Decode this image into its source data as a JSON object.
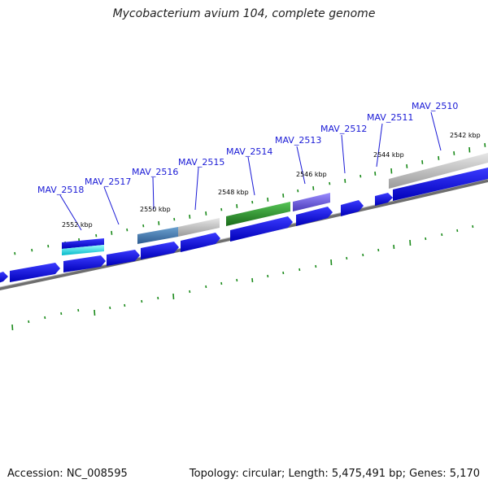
{
  "header": {
    "title": "Mycobacterium avium 104, complete genome"
  },
  "footer": {
    "accession": "Accession: NC_008595",
    "summary": "Topology: circular; Length: 5,475,491 bp; Genes: 5,170"
  },
  "colors": {
    "gene_blue": "#1010e0",
    "gene_cyan": "#00e8f0",
    "gene_steelblue": "#4a80b8",
    "gene_gray": "#bdbdbd",
    "gene_green": "#2a9a2a",
    "gene_slate": "#7a6ae0",
    "backbone": "#7a7a7a",
    "gc_tick": "#1a8a1a",
    "label": "#1a1ad6"
  },
  "scale_labels": [
    "2552 kbp",
    "2550 kbp",
    "2548 kbp",
    "2546 kbp",
    "2544 kbp",
    "2542 kbp"
  ],
  "gene_labels": [
    "MAV_2518",
    "MAV_2517",
    "MAV_2516",
    "MAV_2515",
    "MAV_2514",
    "MAV_2513",
    "MAV_2512",
    "MAV_2511",
    "MAV_2510"
  ]
}
